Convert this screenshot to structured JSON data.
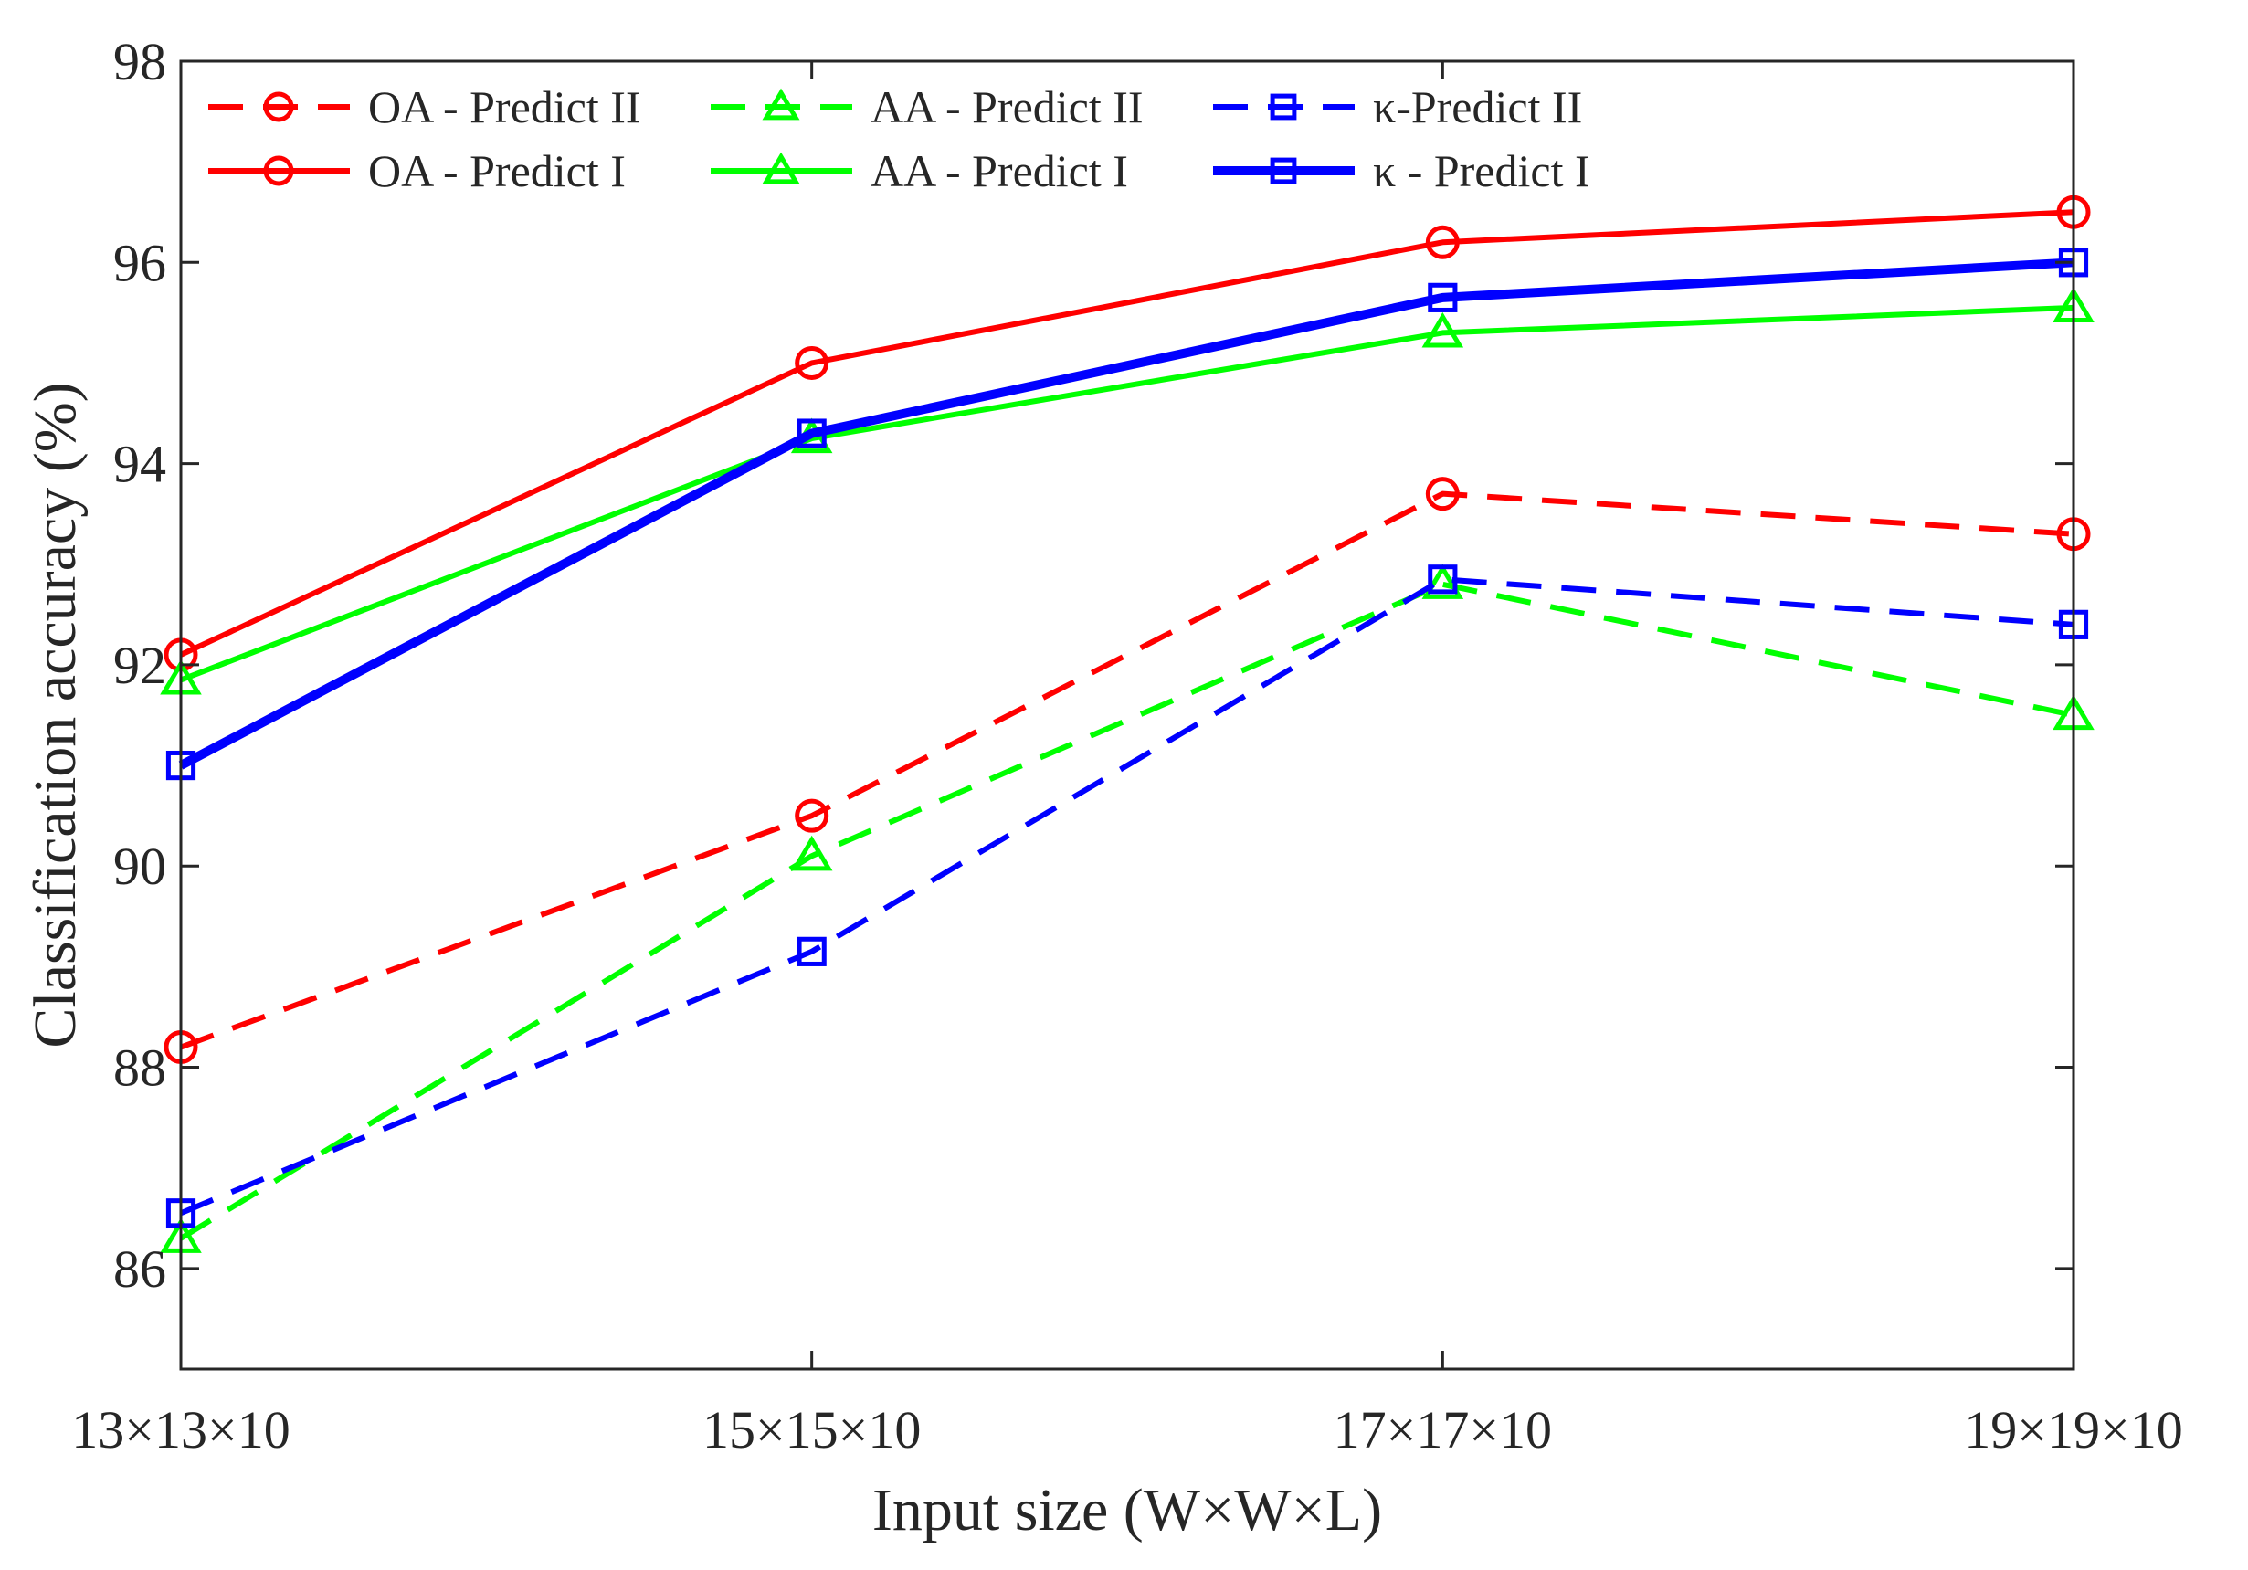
{
  "chart_data": {
    "type": "line",
    "title": "",
    "xlabel": "Input size (W×W×L)",
    "ylabel": "Classification accuracy (%)",
    "categories": [
      "13×13×10",
      "15×15×10",
      "17×17×10",
      "19×19×10"
    ],
    "ylim": [
      85,
      98
    ],
    "yticks": [
      86,
      88,
      90,
      92,
      94,
      96,
      98
    ],
    "grid": false,
    "legend_position": "top",
    "series": [
      {
        "name": "OA - Predict II",
        "color": "#ff0000",
        "dash": true,
        "marker": "circle",
        "width": "normal",
        "values": [
          88.2,
          90.5,
          93.7,
          93.3
        ]
      },
      {
        "name": "AA - Predict II",
        "color": "#00ff00",
        "dash": true,
        "marker": "triangle",
        "width": "normal",
        "values": [
          86.3,
          90.1,
          92.8,
          91.5
        ]
      },
      {
        "name": "κ-Predict II",
        "color": "#0000ff",
        "dash": true,
        "marker": "square",
        "width": "normal",
        "values": [
          86.55,
          89.15,
          92.85,
          92.4
        ]
      },
      {
        "name": "OA - Predict I",
        "color": "#ff0000",
        "dash": false,
        "marker": "circle",
        "width": "normal",
        "values": [
          92.1,
          95.0,
          96.2,
          96.5
        ]
      },
      {
        "name": "AA - Predict I",
        "color": "#00ff00",
        "dash": false,
        "marker": "triangle",
        "width": "normal",
        "values": [
          91.85,
          94.25,
          95.3,
          95.55
        ]
      },
      {
        "name": "κ - Predict I",
        "color": "#0000ff",
        "dash": false,
        "marker": "square",
        "width": "thick",
        "values": [
          91.0,
          94.3,
          95.65,
          96.0
        ]
      }
    ]
  }
}
